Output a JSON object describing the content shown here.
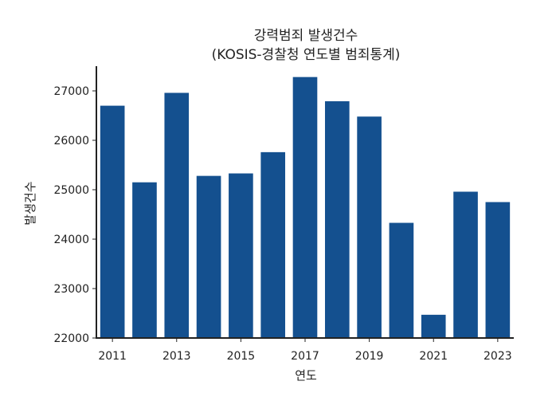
{
  "chart_data": {
    "type": "bar",
    "title_lines": [
      "강력범죄 발생건수",
      "(KOSIS-경찰청 연도별 범죄통계)"
    ],
    "xlabel": "연도",
    "ylabel": "발생건수",
    "categories": [
      "2011",
      "2012",
      "2013",
      "2014",
      "2015",
      "2016",
      "2017",
      "2018",
      "2019",
      "2020",
      "2021",
      "2022",
      "2023"
    ],
    "values": [
      26700,
      25150,
      26960,
      25280,
      25330,
      25760,
      27280,
      26790,
      26480,
      24330,
      22470,
      24960,
      24750
    ],
    "ylim": [
      22000,
      27500
    ],
    "y_ticks": [
      22000,
      23000,
      24000,
      25000,
      26000,
      27000
    ],
    "x_tick_labels": [
      "2011",
      "2013",
      "2015",
      "2017",
      "2019",
      "2021",
      "2023"
    ],
    "bar_color": "#14508F",
    "grid": false,
    "legend": "none"
  }
}
